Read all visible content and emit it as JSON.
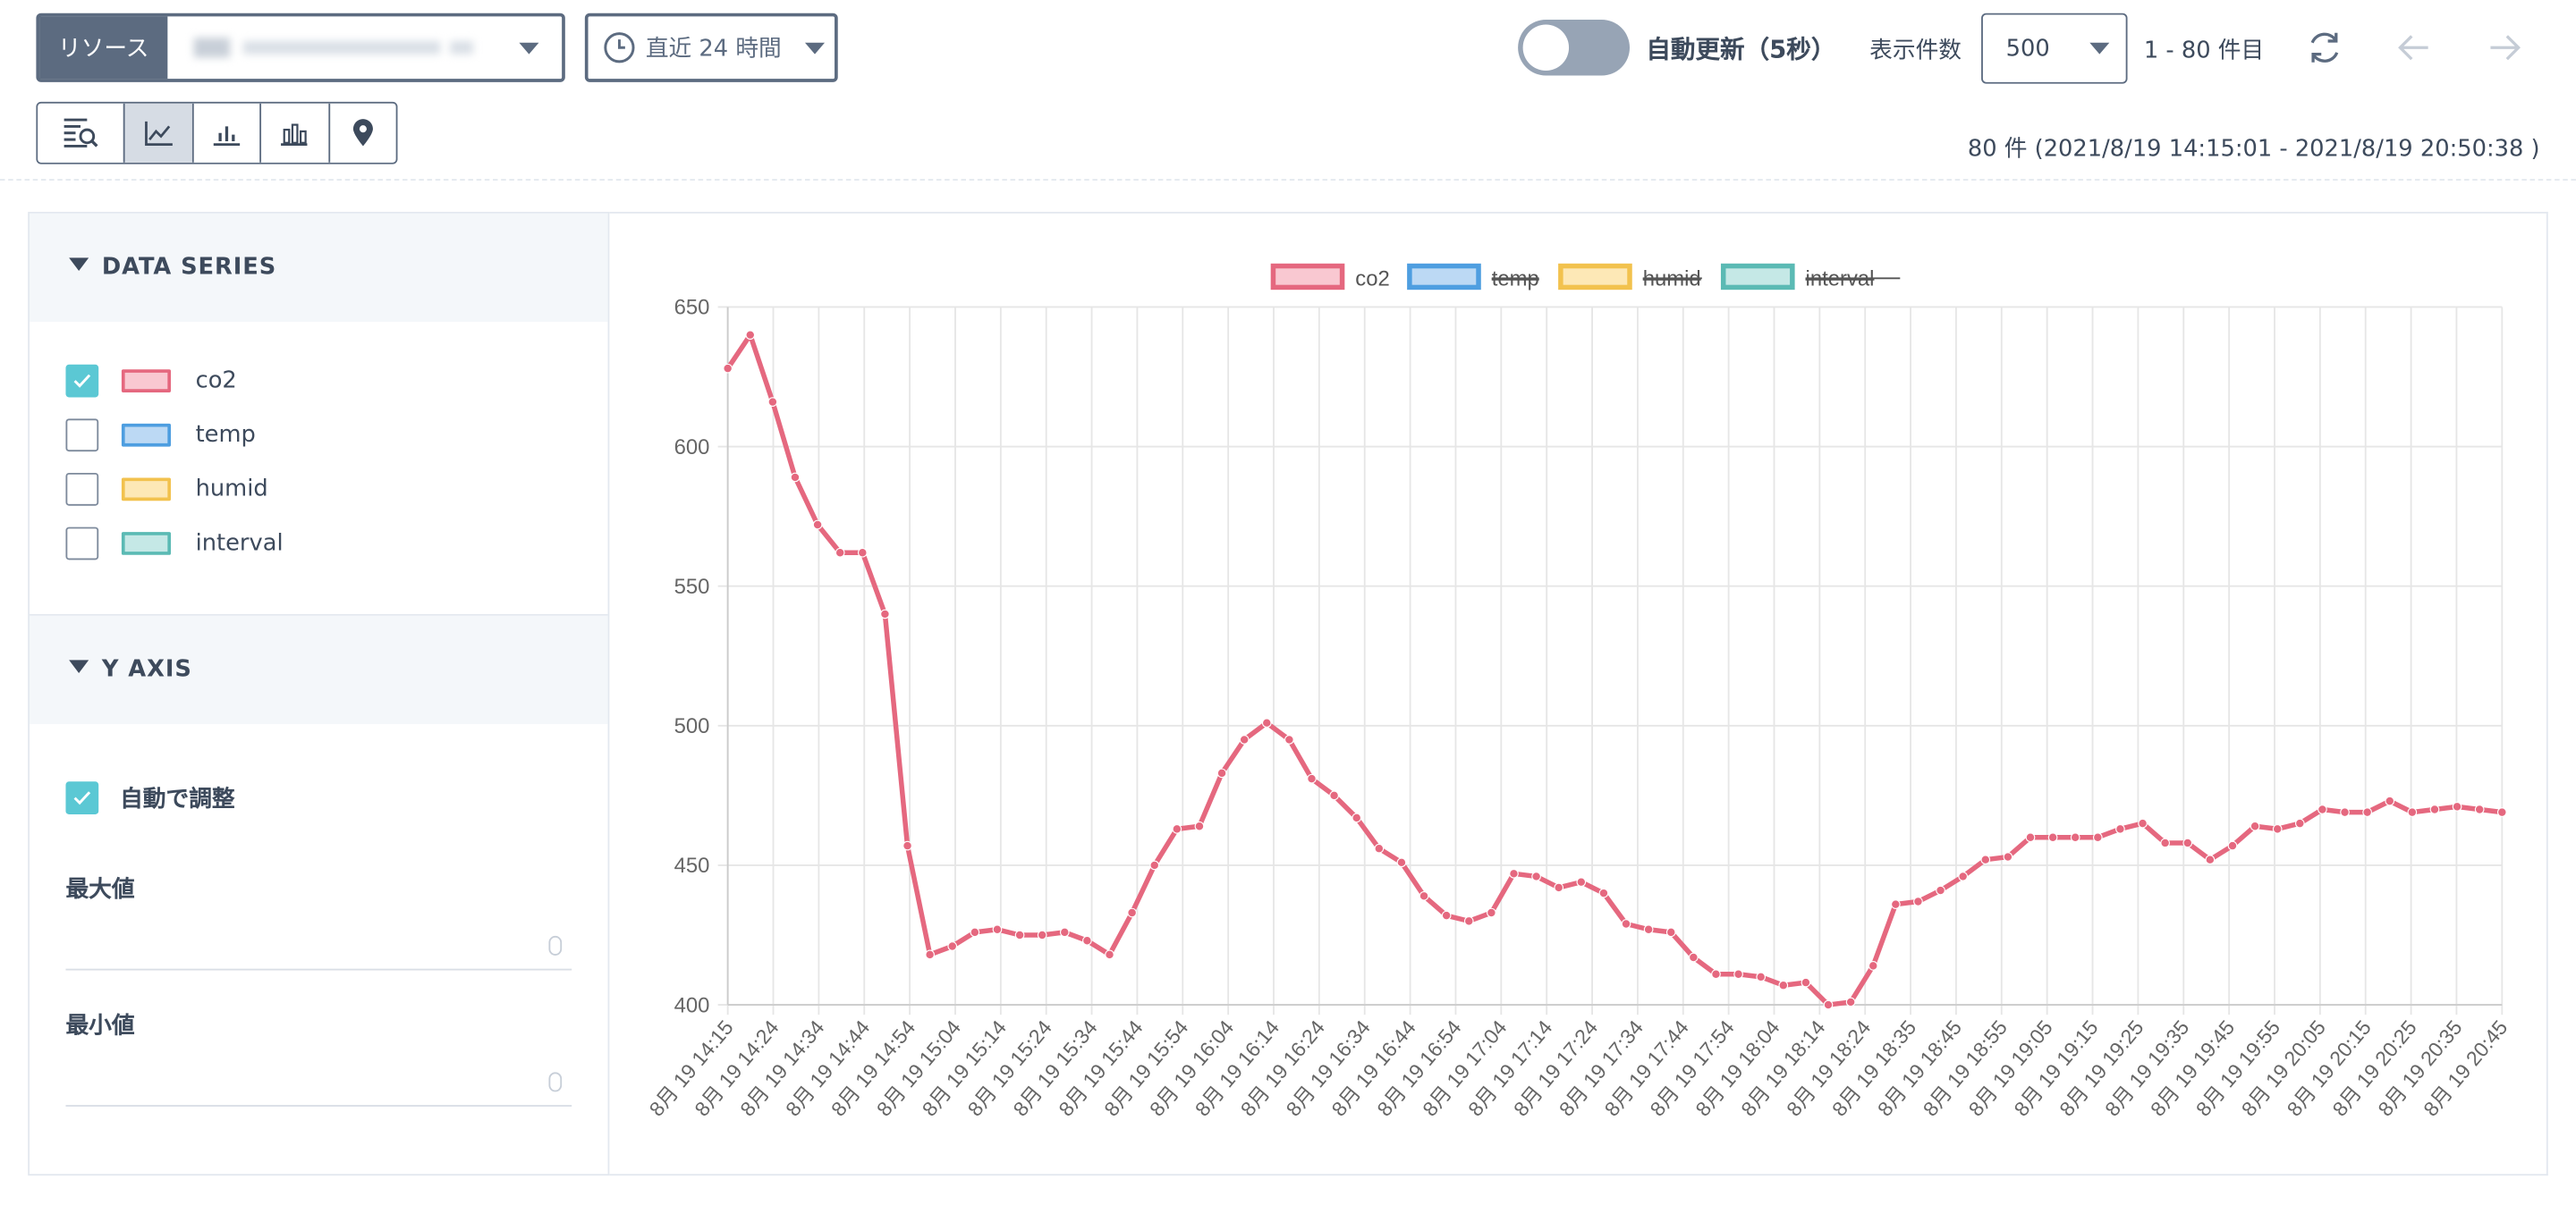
{
  "toolbar": {
    "resource_label": "リソース",
    "resource_value": "",
    "time_range": "直近 24 時間",
    "auto_refresh_label": "自動更新（5秒）",
    "count_label": "表示件数",
    "count_value": "500",
    "range_label": "1 - 80 件目",
    "auto_refresh_on": false
  },
  "summary": "80 件 (2021/8/19 14:15:01  - 2021/8/19 20:50:38 )",
  "view_buttons": [
    {
      "icon": "table-search-icon",
      "active": false
    },
    {
      "icon": "line-chart-icon",
      "active": true
    },
    {
      "icon": "bar-chart-icon",
      "active": false
    },
    {
      "icon": "stacked-bar-icon",
      "active": false
    },
    {
      "icon": "map-pin-icon",
      "active": false
    }
  ],
  "panel": {
    "data_series_title": "DATA SERIES",
    "y_axis_title": "Y AXIS",
    "auto_adjust_label": "自動で調整",
    "max_label": "最大値",
    "min_label": "最小値",
    "max_value": "",
    "min_value": ""
  },
  "series": [
    {
      "name": "co2",
      "checked": true,
      "stroke": "#e5687f",
      "fill": "#f9c8d1"
    },
    {
      "name": "temp",
      "checked": false,
      "stroke": "#4e9ee0",
      "fill": "#bcd9f4"
    },
    {
      "name": "humid",
      "checked": false,
      "stroke": "#f2c24e",
      "fill": "#fde8b6"
    },
    {
      "name": "interval",
      "checked": false,
      "stroke": "#5bbab4",
      "fill": "#c5e8e6"
    }
  ],
  "chart_data": {
    "type": "line",
    "ylim": [
      400,
      650
    ],
    "yticks": [
      400,
      450,
      500,
      550,
      600,
      650
    ],
    "grid": true,
    "legend_position": "top",
    "x_labels": [
      "8月 19 14:15",
      "8月 19 14:24",
      "8月 19 14:34",
      "8月 19 14:44",
      "8月 19 14:54",
      "8月 19 15:04",
      "8月 19 15:14",
      "8月 19 15:24",
      "8月 19 15:34",
      "8月 19 15:44",
      "8月 19 15:54",
      "8月 19 16:04",
      "8月 19 16:14",
      "8月 19 16:24",
      "8月 19 16:34",
      "8月 19 16:44",
      "8月 19 16:54",
      "8月 19 17:04",
      "8月 19 17:14",
      "8月 19 17:24",
      "8月 19 17:34",
      "8月 19 17:44",
      "8月 19 17:54",
      "8月 19 18:04",
      "8月 19 18:14",
      "8月 19 18:24",
      "8月 19 18:35",
      "8月 19 18:45",
      "8月 19 18:55",
      "8月 19 19:05",
      "8月 19 19:15",
      "8月 19 19:25",
      "8月 19 19:35",
      "8月 19 19:45",
      "8月 19 19:55",
      "8月 19 20:05",
      "8月 19 20:15",
      "8月 19 20:25",
      "8月 19 20:35",
      "8月 19 20:45"
    ],
    "series": [
      {
        "name": "co2",
        "values": [
          628,
          640,
          616,
          589,
          572,
          562,
          562,
          540,
          457,
          418,
          421,
          426,
          427,
          425,
          425,
          426,
          423,
          418,
          433,
          450,
          463,
          464,
          483,
          495,
          501,
          495,
          481,
          475,
          467,
          456,
          451,
          439,
          432,
          430,
          433,
          447,
          446,
          442,
          444,
          440,
          429,
          427,
          426,
          417,
          411,
          411,
          410,
          407,
          408,
          400,
          401,
          414,
          436,
          437,
          441,
          446,
          452,
          453,
          460,
          460,
          460,
          460,
          463,
          465,
          458,
          458,
          452,
          457,
          464,
          463,
          465,
          470,
          469,
          469,
          473,
          469,
          470,
          471,
          470,
          469
        ]
      }
    ]
  }
}
